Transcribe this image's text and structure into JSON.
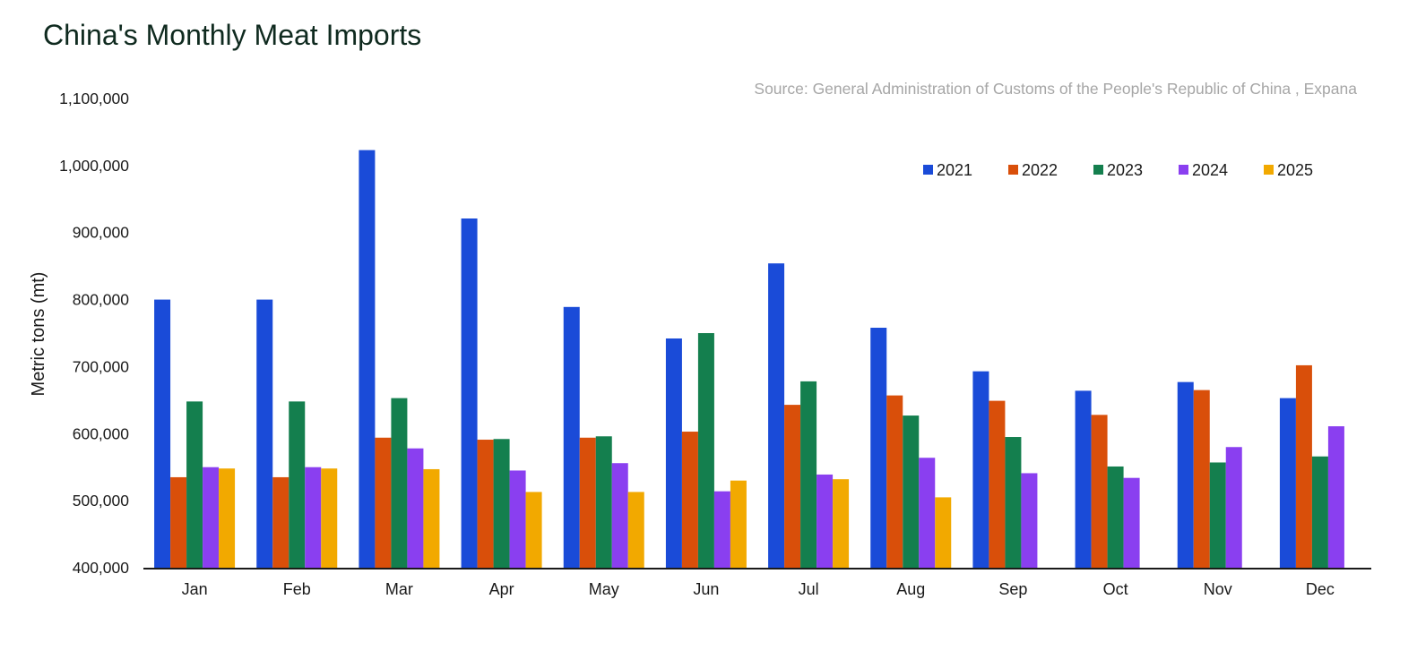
{
  "chart_data": {
    "type": "bar",
    "title": "China's Monthly Meat Imports",
    "source": "Source: General Administration of Customs of the People's Republic of China , Expana",
    "ylabel": "Metric tons (mt)",
    "xlabel": "",
    "ylim": [
      400000,
      1100000
    ],
    "yticks": [
      400000,
      500000,
      600000,
      700000,
      800000,
      900000,
      1000000,
      1100000
    ],
    "ytick_labels": [
      "400,000",
      "500,000",
      "600,000",
      "700,000",
      "800,000",
      "900,000",
      "1,000,000",
      "1,100,000"
    ],
    "grid": false,
    "legend_position": "top-right",
    "categories": [
      "Jan",
      "Feb",
      "Mar",
      "Apr",
      "May",
      "Jun",
      "Jul",
      "Aug",
      "Sep",
      "Oct",
      "Nov",
      "Dec"
    ],
    "series": [
      {
        "name": "2021",
        "color": "#1a4bd8",
        "values": [
          800000,
          800000,
          1023000,
          921000,
          789000,
          742000,
          854000,
          758000,
          693000,
          664000,
          677000,
          653000
        ]
      },
      {
        "name": "2022",
        "color": "#d94f0a",
        "values": [
          535000,
          535000,
          594000,
          591000,
          594000,
          603000,
          643000,
          657000,
          649000,
          628000,
          665000,
          702000
        ]
      },
      {
        "name": "2023",
        "color": "#147f4e",
        "values": [
          648000,
          648000,
          653000,
          592000,
          596000,
          750000,
          678000,
          627000,
          595000,
          551000,
          557000,
          566000
        ]
      },
      {
        "name": "2024",
        "color": "#8a3ff0",
        "values": [
          550000,
          550000,
          578000,
          545000,
          556000,
          514000,
          539000,
          564000,
          541000,
          534000,
          580000,
          611000
        ]
      },
      {
        "name": "2025",
        "color": "#f2a900",
        "values": [
          548000,
          548000,
          547000,
          513000,
          513000,
          530000,
          532000,
          505000,
          null,
          null,
          null,
          null
        ]
      }
    ]
  }
}
